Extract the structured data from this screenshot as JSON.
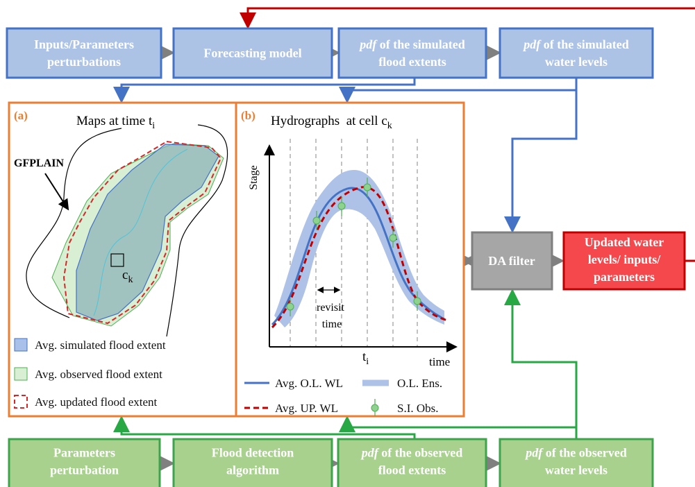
{
  "top_row": [
    {
      "lines": [
        "Inputs/Parameters",
        "perturbations"
      ]
    },
    {
      "lines": [
        "Forecasting model"
      ]
    },
    {
      "lines": [
        {
          "em": "pdf",
          "text": " of the simulated"
        },
        "flood extents"
      ]
    },
    {
      "lines": [
        {
          "em": "pdf",
          "text": " of the simulated"
        },
        "water levels"
      ]
    }
  ],
  "bottom_row": [
    {
      "lines": [
        "Parameters",
        "perturbation"
      ]
    },
    {
      "lines": [
        "Flood detection",
        "algorithm"
      ]
    },
    {
      "lines": [
        {
          "em": "pdf",
          "text": " of the observed"
        },
        "flood extents"
      ]
    },
    {
      "lines": [
        {
          "em": "pdf",
          "text": " of the observed"
        },
        "water levels"
      ]
    }
  ],
  "da_filter": "DA filter",
  "updated": {
    "lines": [
      "Updated water",
      "levels/ inputs/",
      "parameters"
    ]
  },
  "panel_a": {
    "tag": "(a)",
    "title": "Maps at time t",
    "title_sub": "i",
    "gfplain": "GFPLAIN",
    "cell": "c",
    "cell_sub": "k",
    "legend": [
      "Avg. simulated flood extent",
      "Avg. observed flood extent",
      "Avg. updated flood extent"
    ]
  },
  "panel_b": {
    "tag": "(b)",
    "title": "Hydrographs  at cell c",
    "title_sub": "k",
    "y_label": "Stage",
    "x_label": "time",
    "t": "t",
    "t_sub": "i",
    "revisit": [
      "revisit",
      "time"
    ],
    "legend": [
      "Avg. O.L. WL",
      "O.L. Ens.",
      "Avg. UP. WL",
      "S.I. Obs."
    ]
  }
}
